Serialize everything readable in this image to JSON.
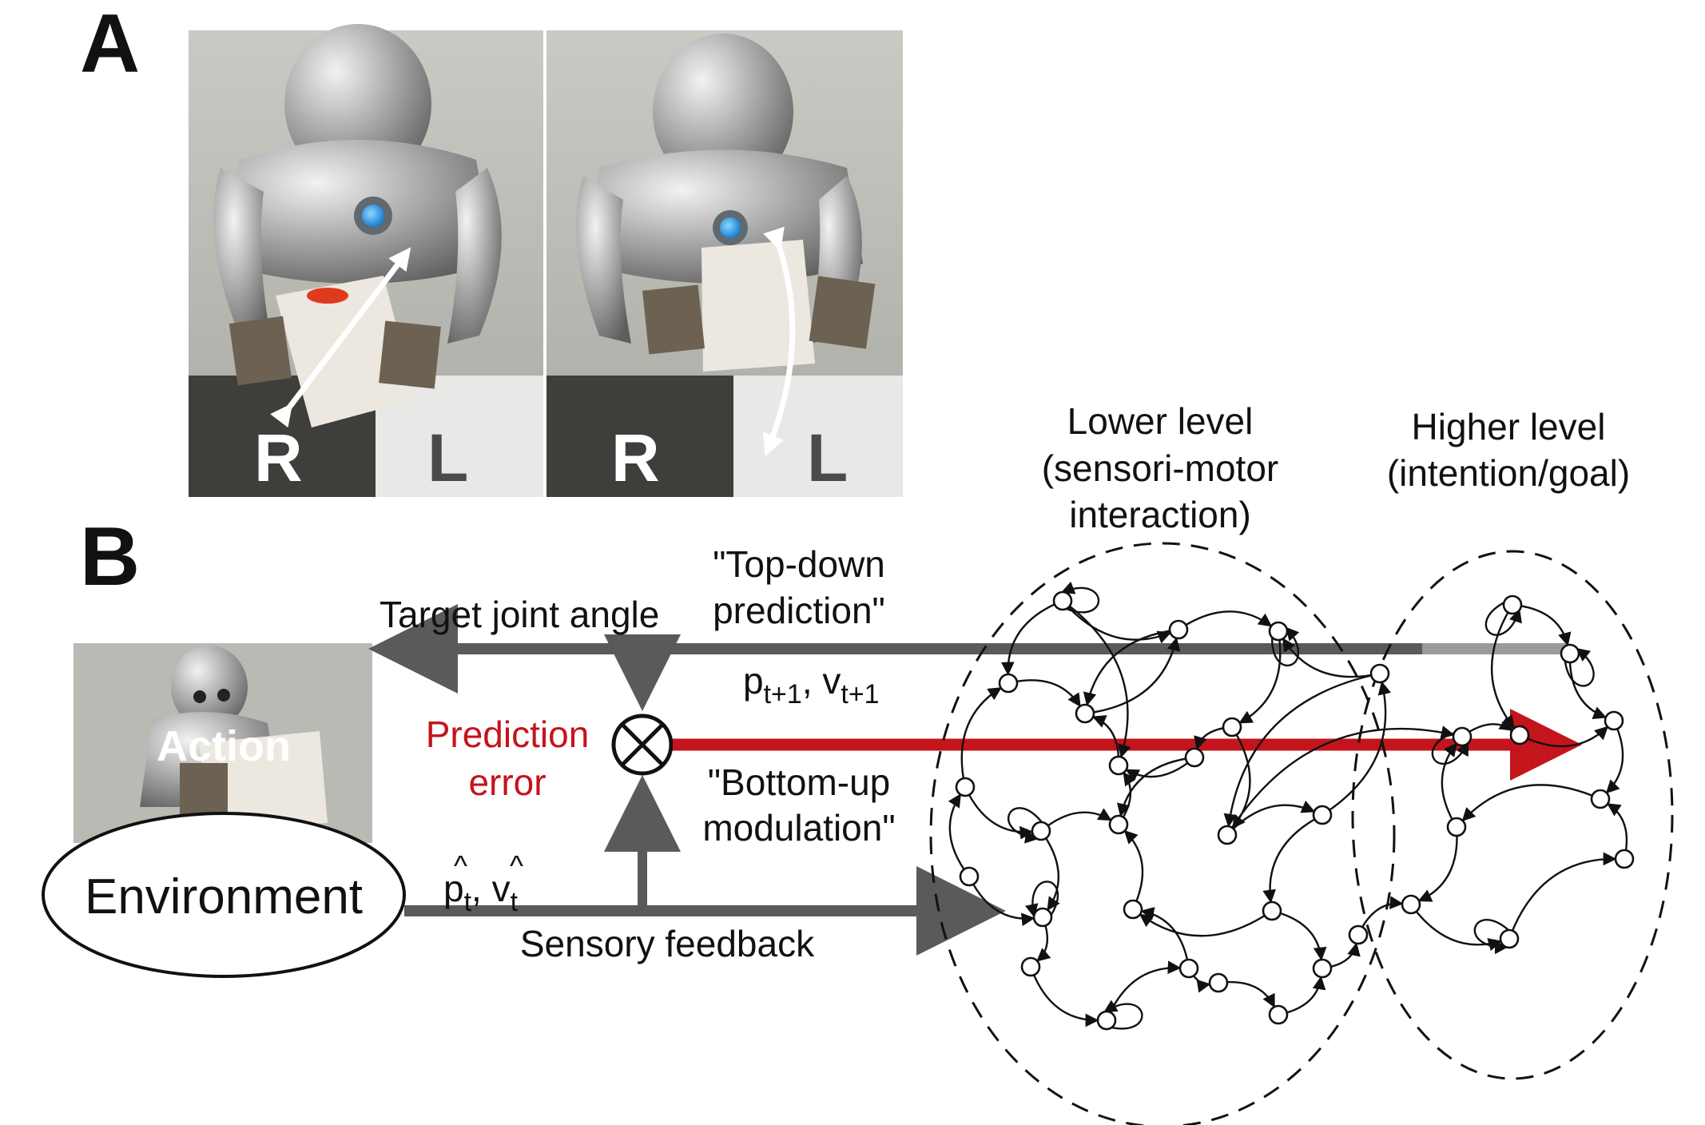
{
  "panel_a": {
    "label": "A",
    "photos": [
      {
        "left_marker": "R",
        "right_marker": "L"
      },
      {
        "left_marker": "R",
        "right_marker": "L"
      }
    ]
  },
  "panel_b": {
    "label": "B",
    "target_joint_angle": "Target joint angle",
    "action": "Action",
    "environment": "Environment",
    "top_down_line1": "\"Top-down",
    "top_down_line2": "prediction\"",
    "pred_p": "p",
    "pred_p_sub": "t+1",
    "pred_v": "v",
    "pred_v_sub": "t+1",
    "prediction_error_line1": "Prediction",
    "prediction_error_line2": "error",
    "bottom_up_line1": "\"Bottom-up",
    "bottom_up_line2": "modulation\"",
    "obs_p": "p",
    "obs_p_sub": "t",
    "obs_v": "v",
    "obs_v_sub": "t",
    "sensory_feedback": "Sensory feedback",
    "lower_level_line1": "Lower level",
    "lower_level_line2": "(sensori-motor",
    "lower_level_line3": "interaction)",
    "higher_level_line1": "Higher level",
    "higher_level_line2": "(intention/goal)"
  },
  "colors": {
    "arrow_gray": "#5a5a5a",
    "error_red": "#c4141c"
  }
}
